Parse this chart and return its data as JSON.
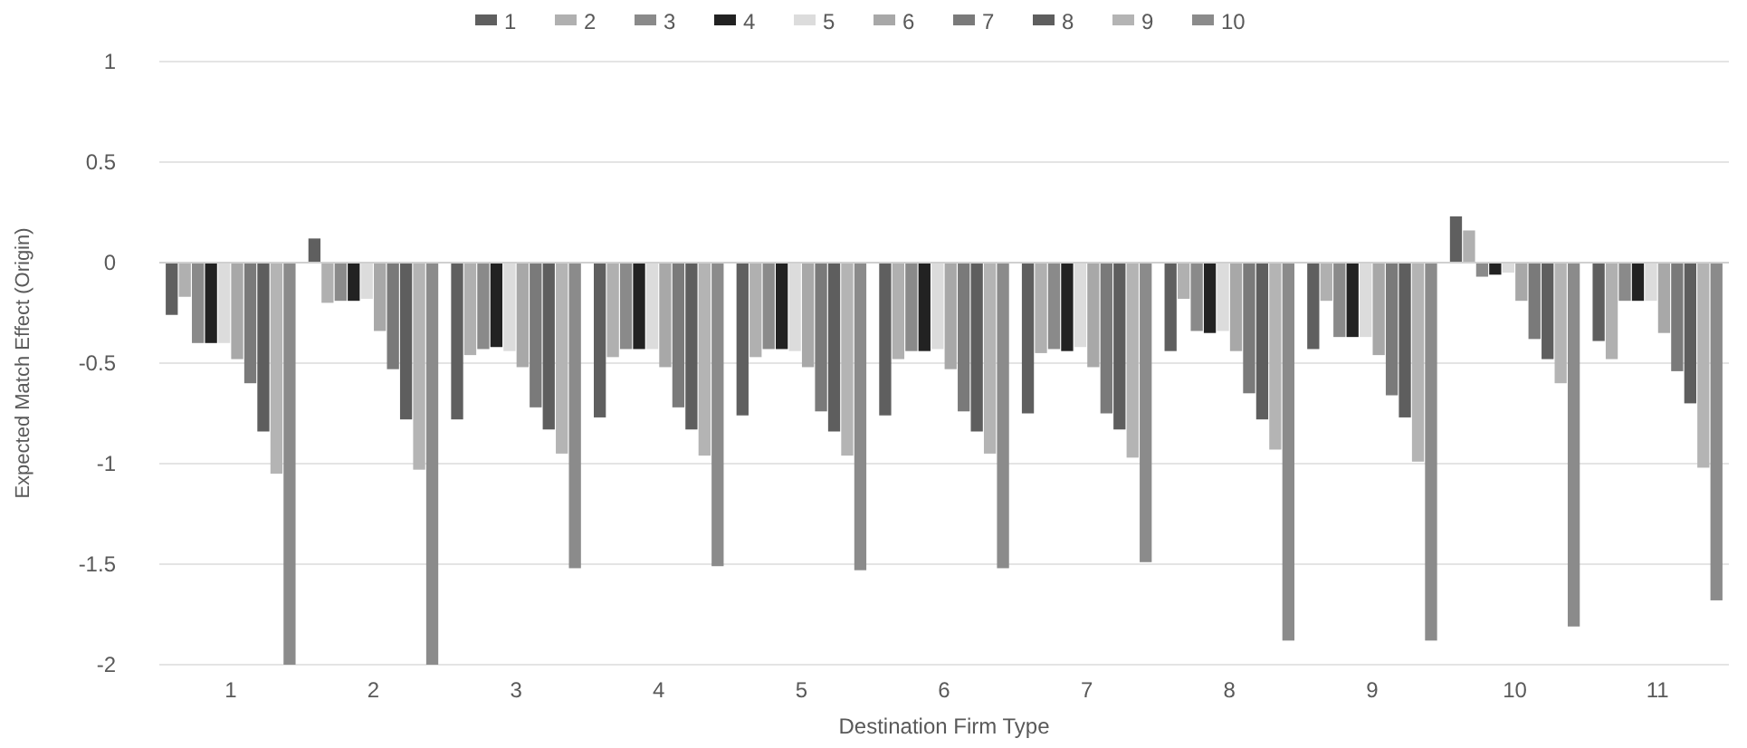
{
  "chart_data": {
    "type": "bar",
    "xlabel": "Destination Firm Type",
    "ylabel": "Expected Match Effect (Origin)",
    "categories": [
      "1",
      "2",
      "3",
      "4",
      "5",
      "6",
      "7",
      "8",
      "9",
      "10",
      "11"
    ],
    "ylim": [
      -2,
      1
    ],
    "yticks": [
      -2,
      -1.5,
      -1,
      -0.5,
      0,
      0.5,
      1
    ],
    "grid": "y",
    "legend": "top",
    "series": [
      {
        "name": "1",
        "color": "#5f5f5f",
        "values": [
          -0.26,
          0.12,
          -0.78,
          -0.77,
          -0.76,
          -0.76,
          -0.75,
          -0.44,
          -0.43,
          0.23,
          -0.39
        ]
      },
      {
        "name": "2",
        "color": "#b0b0b0",
        "values": [
          -0.17,
          -0.2,
          -0.46,
          -0.47,
          -0.47,
          -0.48,
          -0.45,
          -0.18,
          -0.19,
          0.16,
          -0.48
        ]
      },
      {
        "name": "3",
        "color": "#8a8a8a",
        "values": [
          -0.4,
          -0.19,
          -0.43,
          -0.43,
          -0.43,
          -0.44,
          -0.43,
          -0.34,
          -0.37,
          -0.07,
          -0.19
        ]
      },
      {
        "name": "4",
        "color": "#222222",
        "values": [
          -0.4,
          -0.19,
          -0.42,
          -0.43,
          -0.43,
          -0.44,
          -0.44,
          -0.35,
          -0.37,
          -0.06,
          -0.19
        ]
      },
      {
        "name": "5",
        "color": "#dcdcdc",
        "values": [
          -0.4,
          -0.18,
          -0.44,
          -0.43,
          -0.44,
          -0.43,
          -0.42,
          -0.34,
          -0.37,
          -0.05,
          -0.19
        ]
      },
      {
        "name": "6",
        "color": "#a8a8a8",
        "values": [
          -0.48,
          -0.34,
          -0.52,
          -0.52,
          -0.52,
          -0.53,
          -0.52,
          -0.44,
          -0.46,
          -0.19,
          -0.35
        ]
      },
      {
        "name": "7",
        "color": "#7a7a7a",
        "values": [
          -0.6,
          -0.53,
          -0.72,
          -0.72,
          -0.74,
          -0.74,
          -0.75,
          -0.65,
          -0.66,
          -0.38,
          -0.54
        ]
      },
      {
        "name": "8",
        "color": "#5e5e5e",
        "values": [
          -0.84,
          -0.78,
          -0.83,
          -0.83,
          -0.84,
          -0.84,
          -0.83,
          -0.78,
          -0.77,
          -0.48,
          -0.7
        ]
      },
      {
        "name": "9",
        "color": "#b4b4b4",
        "values": [
          -1.05,
          -1.03,
          -0.95,
          -0.96,
          -0.96,
          -0.95,
          -0.97,
          -0.93,
          -0.99,
          -0.6,
          -1.02
        ]
      },
      {
        "name": "10",
        "color": "#8b8b8b",
        "values": [
          -2,
          -2,
          -1.52,
          -1.51,
          -1.53,
          -1.52,
          -1.49,
          -1.88,
          -1.88,
          -1.81,
          -1.68
        ]
      }
    ]
  }
}
